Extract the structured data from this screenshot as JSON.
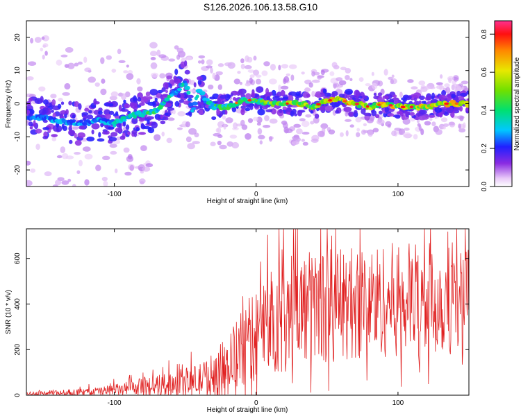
{
  "title": "S126.2026.106.13.58.G10",
  "colors": {
    "snr_line": "#e02020",
    "frame": "#000000"
  },
  "chart_data": [
    {
      "type": "heatmap",
      "title": "S126.2026.106.13.58.G10",
      "xlabel": "Height of straight line (km)",
      "ylabel": "Frequency (Hz)",
      "xlim": [
        -162,
        150
      ],
      "ylim": [
        -25,
        25
      ],
      "xticks": [
        -100,
        0,
        100
      ],
      "xtick_labels": [
        "-100",
        "0",
        "100"
      ],
      "yticks": [
        -20,
        -10,
        0,
        10,
        20
      ],
      "ytick_labels": [
        "-20",
        "-10",
        "0",
        "10",
        "20"
      ],
      "colorbar": {
        "label": "Normalized spectral amplitude",
        "range": [
          0,
          0.87
        ],
        "ticks": [
          0,
          0.2,
          0.4,
          0.6,
          0.8
        ],
        "tick_labels": [
          "0.0",
          "0.2",
          "0.4",
          "0.6",
          "0.8"
        ]
      },
      "ridge": {
        "x": [
          -155,
          -140,
          -125,
          -110,
          -100,
          -90,
          -80,
          -70,
          -60,
          -55,
          -50,
          -45,
          -40,
          -35,
          -30,
          -20,
          -10,
          0,
          10,
          20,
          30,
          40,
          50,
          60,
          70,
          80,
          90,
          100,
          110,
          120,
          130,
          140,
          148
        ],
        "y": [
          -4,
          -5,
          -6,
          -5,
          -6,
          -4,
          -3,
          -2,
          3,
          4,
          7,
          -2,
          4,
          1,
          -1,
          -1,
          1,
          1,
          0,
          0,
          0,
          -1,
          1,
          1,
          0,
          -1,
          0,
          -1,
          -1,
          -1,
          0,
          0,
          0
        ],
        "amplitude": [
          0.3,
          0.35,
          0.35,
          0.35,
          0.4,
          0.45,
          0.5,
          0.5,
          0.45,
          0.45,
          0.4,
          0.45,
          0.4,
          0.45,
          0.5,
          0.55,
          0.6,
          0.6,
          0.65,
          0.7,
          0.8,
          0.7,
          0.75,
          0.8,
          0.85,
          0.7,
          0.8,
          0.75,
          0.75,
          0.8,
          0.8,
          0.75,
          0.7
        ]
      }
    },
    {
      "type": "line",
      "xlabel": "Height of straight line (km)",
      "ylabel": "SNR (10 * v/v)",
      "xlim": [
        -162,
        150
      ],
      "ylim": [
        0,
        730
      ],
      "xticks": [
        -100,
        0,
        100
      ],
      "xtick_labels": [
        "-100",
        "0",
        "100"
      ],
      "yticks": [
        0,
        200,
        400,
        600
      ],
      "ytick_labels": [
        "0",
        "200",
        "400",
        "600"
      ],
      "envelope": {
        "x": [
          -162,
          -140,
          -120,
          -100,
          -80,
          -60,
          -40,
          -30,
          -20,
          -10,
          0,
          10,
          20,
          40,
          60,
          80,
          100,
          120,
          140,
          150
        ],
        "mean": [
          5,
          10,
          12,
          20,
          35,
          50,
          65,
          90,
          130,
          200,
          270,
          320,
          370,
          390,
          400,
          410,
          420,
          420,
          420,
          420
        ],
        "spread": [
          10,
          15,
          20,
          30,
          45,
          60,
          80,
          110,
          150,
          200,
          230,
          260,
          270,
          280,
          280,
          280,
          280,
          280,
          270,
          260
        ]
      }
    }
  ]
}
